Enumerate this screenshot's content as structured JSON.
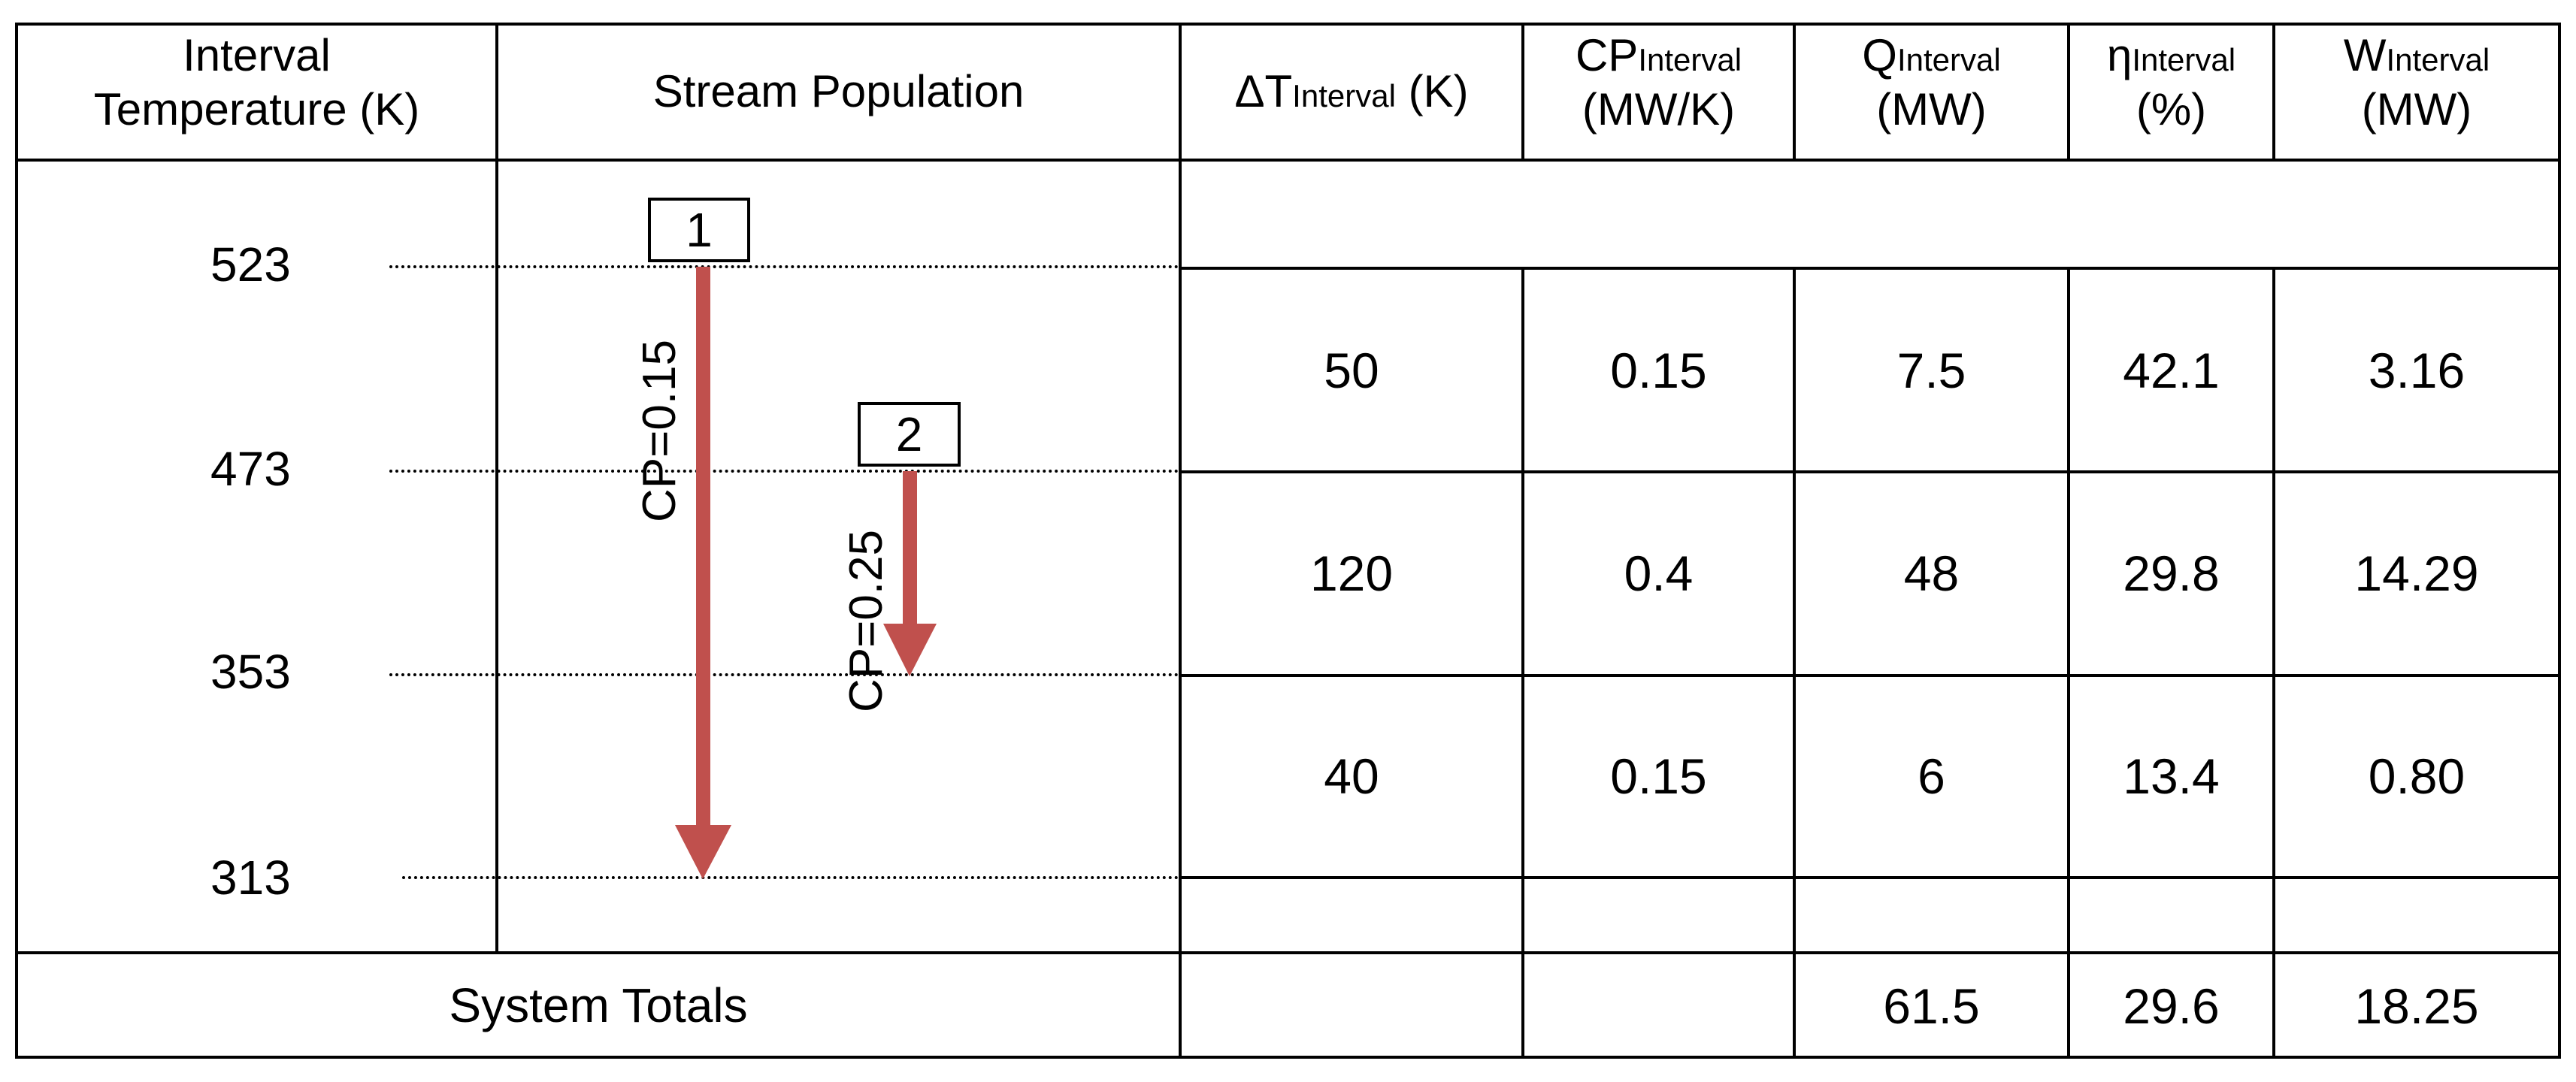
{
  "table": {
    "headers": {
      "interval_temperature": "Interval Temperature (K)",
      "interval_temperature_l1": "Interval",
      "interval_temperature_l2": "Temperature (K)",
      "stream_population": "Stream Population",
      "delta_t": {
        "main": "ΔT",
        "sub": "Interval",
        "unit": "(K)"
      },
      "cp": {
        "main": "CP",
        "sub": "Interval",
        "unit": "(MW/K)"
      },
      "q": {
        "main": "Q",
        "sub": "Interval",
        "unit": "(MW)"
      },
      "eta": {
        "main": "η",
        "sub": "Interval",
        "unit": "(%)"
      },
      "w": {
        "main": "W",
        "sub": "Interval",
        "unit": "(MW)"
      }
    },
    "temperatures": [
      "523",
      "473",
      "353",
      "313"
    ],
    "rows": [
      {
        "delta_t": "50",
        "cp": "0.15",
        "q": "7.5",
        "eta": "42.1",
        "w": "3.16"
      },
      {
        "delta_t": "120",
        "cp": "0.4",
        "q": "48",
        "eta": "29.8",
        "w": "14.29"
      },
      {
        "delta_t": "40",
        "cp": "0.15",
        "q": "6",
        "eta": "13.4",
        "w": "0.80"
      }
    ],
    "totals": {
      "label": "System Totals",
      "q": "61.5",
      "eta": "29.6",
      "w": "18.25"
    }
  },
  "streams": [
    {
      "id": "1",
      "cp_label": "CP=0.15",
      "from_K": 523,
      "to_K": 313,
      "color": "#c0504d"
    },
    {
      "id": "2",
      "cp_label": "CP=0.25",
      "from_K": 473,
      "to_K": 353,
      "color": "#c0504d"
    }
  ]
}
